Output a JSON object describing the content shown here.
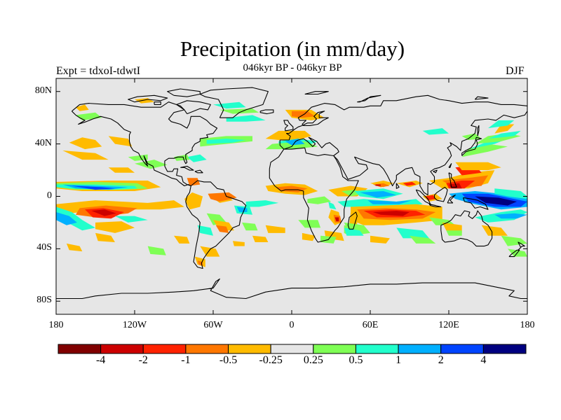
{
  "title": "Precipitation (in mm/day)",
  "subtitle": "046kyr BP - 046kyr BP",
  "left_label": "Expt = tdxoI-tdwtI",
  "right_label": "DJF",
  "map": {
    "type": "filled-contour-map",
    "projection": "cylindrical-equidistant",
    "lon_range": [
      -180,
      180
    ],
    "lat_range": [
      -90,
      90
    ],
    "background_color": "#e6e6e6",
    "lat_ticks": [
      {
        "value": 80,
        "label": "80N"
      },
      {
        "value": 40,
        "label": "40N"
      },
      {
        "value": 0,
        "label": "0"
      },
      {
        "value": -40,
        "label": "40S"
      },
      {
        "value": -80,
        "label": "80S"
      }
    ],
    "lon_ticks": [
      {
        "value": -180,
        "label": "180"
      },
      {
        "value": -120,
        "label": "120W"
      },
      {
        "value": -60,
        "label": "60W"
      },
      {
        "value": 0,
        "label": "0"
      },
      {
        "value": 60,
        "label": "60E"
      },
      {
        "value": 120,
        "label": "120E"
      },
      {
        "value": 180,
        "label": "180"
      }
    ]
  },
  "colorbar": {
    "colors": [
      "#800000",
      "#cc0000",
      "#ff2200",
      "#ff7700",
      "#ffbb00",
      "#e6e6e6",
      "#7fff55",
      "#22ffcc",
      "#00b0ff",
      "#0044ff",
      "#000080"
    ],
    "labels": [
      "-4",
      "-2",
      "-1",
      "-0.5",
      "-0.25",
      "0.25",
      "0.5",
      "1",
      "2",
      "4"
    ]
  }
}
